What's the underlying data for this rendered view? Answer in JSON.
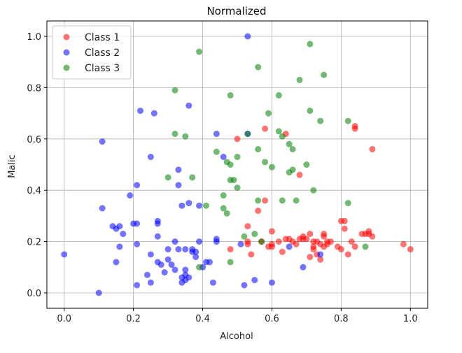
{
  "chart_data": {
    "type": "scatter",
    "title": "Normalized",
    "xlabel": "Alcohol",
    "ylabel": "Malic",
    "xlim": [
      -0.05,
      1.05
    ],
    "ylim": [
      -0.06,
      1.06
    ],
    "xticks": [
      "0.0",
      "0.2",
      "0.4",
      "0.6",
      "0.8",
      "1.0"
    ],
    "yticks": [
      "0.0",
      "0.2",
      "0.4",
      "0.6",
      "0.8",
      "1.0"
    ],
    "grid": true,
    "legend_position": "top-left",
    "series": [
      {
        "name": "Class 1",
        "color": "#ff0000",
        "points": [
          [
            0.5,
            0.6
          ],
          [
            0.58,
            0.64
          ],
          [
            0.64,
            0.62
          ],
          [
            0.84,
            0.65
          ],
          [
            0.84,
            0.64
          ],
          [
            0.89,
            0.56
          ],
          [
            0.68,
            0.46
          ],
          [
            0.56,
            0.32
          ],
          [
            0.58,
            0.36
          ],
          [
            0.53,
            0.26
          ],
          [
            0.48,
            0.17
          ],
          [
            0.53,
            0.2
          ],
          [
            0.53,
            0.19
          ],
          [
            0.54,
            0.15
          ],
          [
            0.57,
            0.2
          ],
          [
            0.59,
            0.18
          ],
          [
            0.6,
            0.24
          ],
          [
            0.6,
            0.19
          ],
          [
            0.62,
            0.2
          ],
          [
            0.64,
            0.21
          ],
          [
            0.65,
            0.21
          ],
          [
            0.66,
            0.2
          ],
          [
            0.67,
            0.19
          ],
          [
            0.68,
            0.21
          ],
          [
            0.69,
            0.22
          ],
          [
            0.7,
            0.21
          ],
          [
            0.71,
            0.23
          ],
          [
            0.72,
            0.2
          ],
          [
            0.72,
            0.18
          ],
          [
            0.73,
            0.2
          ],
          [
            0.73,
            0.15
          ],
          [
            0.74,
            0.19
          ],
          [
            0.74,
            0.13
          ],
          [
            0.75,
            0.23
          ],
          [
            0.75,
            0.18
          ],
          [
            0.76,
            0.19
          ],
          [
            0.77,
            0.2
          ],
          [
            0.79,
            0.18
          ],
          [
            0.8,
            0.28
          ],
          [
            0.8,
            0.17
          ],
          [
            0.81,
            0.25
          ],
          [
            0.81,
            0.28
          ],
          [
            0.82,
            0.15
          ],
          [
            0.83,
            0.2
          ],
          [
            0.84,
            0.18
          ],
          [
            0.86,
            0.23
          ],
          [
            0.87,
            0.23
          ],
          [
            0.88,
            0.24
          ],
          [
            0.88,
            0.23
          ],
          [
            0.89,
            0.22
          ],
          [
            0.98,
            0.19
          ],
          [
            1.0,
            0.17
          ],
          [
            0.71,
            0.14
          ],
          [
            0.75,
            0.22
          ],
          [
            0.69,
            0.21
          ],
          [
            0.72,
            0.17
          ],
          [
            0.76,
            0.2
          ],
          [
            0.63,
            0.16
          ],
          [
            0.6,
            0.18
          ]
        ]
      },
      {
        "name": "Class 2",
        "color": "#0000ff",
        "points": [
          [
            0.0,
            0.15
          ],
          [
            0.1,
            0.0
          ],
          [
            0.11,
            0.59
          ],
          [
            0.11,
            0.33
          ],
          [
            0.14,
            0.26
          ],
          [
            0.15,
            0.25
          ],
          [
            0.15,
            0.12
          ],
          [
            0.16,
            0.18
          ],
          [
            0.17,
            0.23
          ],
          [
            0.16,
            0.26
          ],
          [
            0.19,
            0.38
          ],
          [
            0.2,
            0.27
          ],
          [
            0.21,
            0.19
          ],
          [
            0.21,
            0.27
          ],
          [
            0.21,
            0.42
          ],
          [
            0.21,
            0.03
          ],
          [
            0.22,
            0.71
          ],
          [
            0.24,
            0.07
          ],
          [
            0.25,
            0.53
          ],
          [
            0.25,
            0.04
          ],
          [
            0.25,
            0.15
          ],
          [
            0.26,
            0.7
          ],
          [
            0.27,
            0.27
          ],
          [
            0.27,
            0.28
          ],
          [
            0.27,
            0.22
          ],
          [
            0.27,
            0.12
          ],
          [
            0.28,
            0.11
          ],
          [
            0.29,
            0.08
          ],
          [
            0.3,
            0.17
          ],
          [
            0.3,
            0.13
          ],
          [
            0.31,
            0.11
          ],
          [
            0.32,
            0.2
          ],
          [
            0.32,
            0.09
          ],
          [
            0.33,
            0.48
          ],
          [
            0.33,
            0.42
          ],
          [
            0.33,
            0.17
          ],
          [
            0.34,
            0.34
          ],
          [
            0.34,
            0.06
          ],
          [
            0.34,
            0.04
          ],
          [
            0.35,
            0.17
          ],
          [
            0.35,
            0.09
          ],
          [
            0.35,
            0.07
          ],
          [
            0.35,
            0.05
          ],
          [
            0.36,
            0.73
          ],
          [
            0.36,
            0.35
          ],
          [
            0.37,
            0.17
          ],
          [
            0.37,
            0.16
          ],
          [
            0.38,
            0.16
          ],
          [
            0.38,
            0.14
          ],
          [
            0.39,
            0.34
          ],
          [
            0.39,
            0.2
          ],
          [
            0.4,
            0.1
          ],
          [
            0.42,
            0.12
          ],
          [
            0.43,
            0.04
          ],
          [
            0.44,
            0.62
          ],
          [
            0.44,
            0.21
          ],
          [
            0.44,
            0.2
          ],
          [
            0.46,
            0.53
          ],
          [
            0.51,
            0.19
          ],
          [
            0.52,
            0.03
          ],
          [
            0.53,
            0.62
          ],
          [
            0.53,
            1.0
          ],
          [
            0.55,
            0.05
          ],
          [
            0.6,
            0.04
          ],
          [
            0.65,
            0.18
          ],
          [
            0.69,
            0.1
          ],
          [
            0.74,
            0.15
          ],
          [
            0.36,
            0.06
          ],
          [
            0.41,
            0.12
          ]
        ]
      },
      {
        "name": "Class 3",
        "color": "#008000",
        "points": [
          [
            0.39,
            0.94
          ],
          [
            0.71,
            0.97
          ],
          [
            0.56,
            0.88
          ],
          [
            0.75,
            0.85
          ],
          [
            0.68,
            0.83
          ],
          [
            0.32,
            0.79
          ],
          [
            0.48,
            0.77
          ],
          [
            0.62,
            0.77
          ],
          [
            0.71,
            0.71
          ],
          [
            0.59,
            0.7
          ],
          [
            0.74,
            0.67
          ],
          [
            0.82,
            0.67
          ],
          [
            0.62,
            0.63
          ],
          [
            0.63,
            0.61
          ],
          [
            0.32,
            0.62
          ],
          [
            0.35,
            0.61
          ],
          [
            0.53,
            0.62
          ],
          [
            0.65,
            0.58
          ],
          [
            0.66,
            0.56
          ],
          [
            0.56,
            0.56
          ],
          [
            0.44,
            0.55
          ],
          [
            0.5,
            0.53
          ],
          [
            0.47,
            0.51
          ],
          [
            0.58,
            0.51
          ],
          [
            0.48,
            0.5
          ],
          [
            0.6,
            0.49
          ],
          [
            0.7,
            0.5
          ],
          [
            0.66,
            0.48
          ],
          [
            0.65,
            0.47
          ],
          [
            0.3,
            0.45
          ],
          [
            0.37,
            0.45
          ],
          [
            0.48,
            0.44
          ],
          [
            0.49,
            0.44
          ],
          [
            0.5,
            0.41
          ],
          [
            0.46,
            0.38
          ],
          [
            0.56,
            0.36
          ],
          [
            0.63,
            0.36
          ],
          [
            0.67,
            0.36
          ],
          [
            0.72,
            0.4
          ],
          [
            0.82,
            0.35
          ],
          [
            0.41,
            0.34
          ],
          [
            0.46,
            0.33
          ],
          [
            0.47,
            0.31
          ],
          [
            0.55,
            0.23
          ],
          [
            0.57,
            0.2
          ],
          [
            0.48,
            0.12
          ],
          [
            0.39,
            0.1
          ],
          [
            0.87,
            0.18
          ],
          [
            0.52,
            0.22
          ]
        ]
      }
    ]
  }
}
